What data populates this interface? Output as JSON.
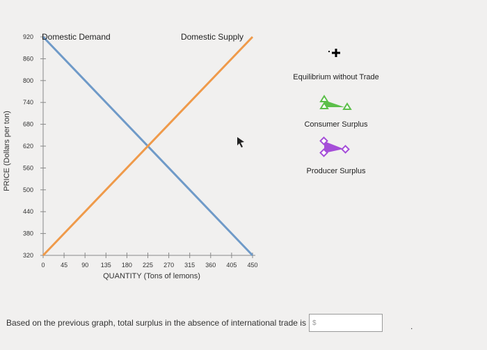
{
  "chart_data": {
    "type": "line",
    "title": "",
    "xlabel": "QUANTITY (Tons of lemons)",
    "ylabel": "PRICE (Dollars per ton)",
    "xlim": [
      0,
      450
    ],
    "ylim": [
      320,
      920
    ],
    "x_ticks": [
      0,
      45,
      90,
      135,
      180,
      225,
      270,
      315,
      360,
      405,
      450
    ],
    "y_ticks": [
      320,
      380,
      440,
      500,
      560,
      620,
      680,
      740,
      800,
      860,
      920
    ],
    "series": [
      {
        "name": "Domestic Demand",
        "color": "#6f9ac8",
        "x": [
          0,
          450
        ],
        "y": [
          920,
          320
        ]
      },
      {
        "name": "Domestic Supply",
        "color": "#ef9a4a",
        "x": [
          0,
          450
        ],
        "y": [
          320,
          920
        ]
      }
    ],
    "grid": false
  },
  "legend": {
    "items": [
      {
        "label": "Equilibrium without Trade",
        "icon": "plus-marker-icon",
        "color": "#000000"
      },
      {
        "label": "Consumer Surplus",
        "icon": "triangle-tool-icon",
        "color": "#5cbf4a"
      },
      {
        "label": "Producer Surplus",
        "icon": "diamond-tool-icon",
        "color": "#a54ed8"
      }
    ]
  },
  "question": {
    "text": "Based on the previous graph, total surplus in the absence of international trade is",
    "currency_symbol": "$",
    "answer_value": "",
    "trailing": "."
  }
}
